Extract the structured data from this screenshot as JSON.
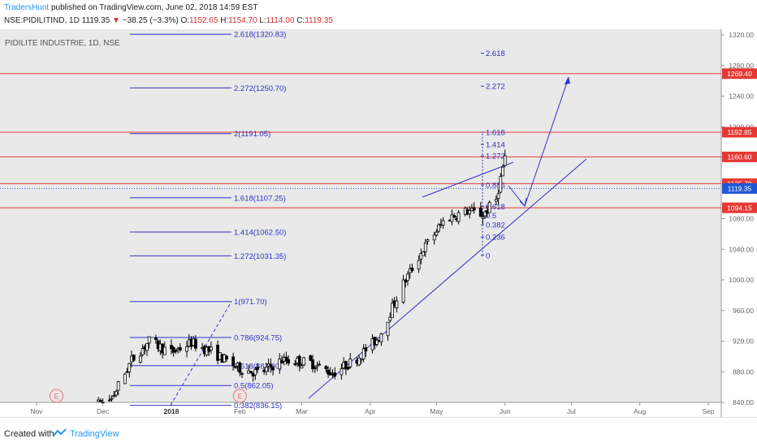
{
  "header": {
    "author": "TradersHunt",
    "published": " published on TradingView.com, June 02, 2018 14:59 EST",
    "symbol": "NSE:PIDILITIND, 1D",
    "price": "1119.35",
    "change_arrow": "▼",
    "change": "−38.25 (−3.3%)",
    "o_label": "O:",
    "o_val": "1152.65",
    "h_label": "H:",
    "h_val": "1154.70",
    "l_label": "L:",
    "l_val": "1114.00",
    "c_label": "C:",
    "c_val": "1119.35"
  },
  "footer": {
    "created_with": "Created with",
    "brand": "TradingView"
  },
  "colors": {
    "background": "#e9e9e9",
    "candle": "#000000",
    "fib": "#3030c8",
    "resistance": "#e53935",
    "price_line": "#1e56d6",
    "axis_text": "#666666"
  },
  "chart_data": {
    "type": "candlestick",
    "title": "PIDILITE INDUSTRIE, 1D, NSE",
    "y_axis": {
      "min": 820,
      "max": 1330,
      "ticks": [
        840,
        880,
        920,
        960,
        1000,
        1040,
        1080,
        1120,
        1160,
        1200,
        1240,
        1280,
        1320
      ],
      "tick_labels": [
        "840.00",
        "880.00",
        "920.00",
        "960.00",
        "1000.00",
        "1040.00",
        "1080.00",
        "1120.00",
        "1160.00",
        "1200.00",
        "1240.00",
        "1280.00",
        "1320.00"
      ]
    },
    "x_axis": {
      "labels": [
        "Nov",
        "Dec",
        "2018",
        "Feb",
        "Mar",
        "Apr",
        "May",
        "Jun",
        "Jul",
        "Aug",
        "Sep"
      ],
      "dates": [
        "2017-11-01",
        "2017-12-01",
        "2018-01-01",
        "2018-02-01",
        "2018-03-01",
        "2018-04-01",
        "2018-05-01",
        "2018-06-01",
        "2018-07-01",
        "2018-08-01",
        "2018-09-01"
      ]
    },
    "horizontal_levels": [
      {
        "value": 1269.4,
        "label": "1269.40",
        "color": "#e53935"
      },
      {
        "value": 1192.85,
        "label": "1192.85",
        "color": "#e53935"
      },
      {
        "value": 1160.6,
        "label": "1160.60",
        "color": "#e53935"
      },
      {
        "value": 1125.7,
        "label": "1125.70",
        "color": "#e53935"
      },
      {
        "value": 1094.15,
        "label": "1094.15",
        "color": "#e53935"
      }
    ],
    "current_price": {
      "value": 1119.35,
      "label": "1119.35"
    },
    "fib_extension_left": [
      {
        "label": "2.618(1320.83)",
        "value": 1320.83
      },
      {
        "label": "2.272(1250.70)",
        "value": 1250.7
      },
      {
        "label": "2(1191.05)",
        "value": 1191.05
      },
      {
        "label": "1.618(1107.25)",
        "value": 1107.25
      },
      {
        "label": "1.414(1062.50)",
        "value": 1062.5
      },
      {
        "label": "1.272(1031.35)",
        "value": 1031.35
      },
      {
        "label": "1(971.70)",
        "value": 971.7
      },
      {
        "label": "0.786(924.75)",
        "value": 924.75
      },
      {
        "label": "0.618(887.90)",
        "value": 887.9
      },
      {
        "label": "0.5(862.05)",
        "value": 862.05
      },
      {
        "label": "0.382(836.15)",
        "value": 836.15
      }
    ],
    "fib_retracement_right": [
      {
        "label": "2.618",
        "value": 1296
      },
      {
        "label": "2.272",
        "value": 1253
      },
      {
        "label": "1.618",
        "value": 1193
      },
      {
        "label": "1.414",
        "value": 1177
      },
      {
        "label": "1.272",
        "value": 1162
      },
      {
        "label": "0.886",
        "value": 1124
      },
      {
        "label": "0.618",
        "value": 1096
      },
      {
        "label": "0.5",
        "value": 1084
      },
      {
        "label": "0.382",
        "value": 1072
      },
      {
        "label": "0.236",
        "value": 1056
      },
      {
        "label": "0",
        "value": 1032
      }
    ],
    "earnings_markers": [
      {
        "label": "E",
        "date": "2017-11-10"
      },
      {
        "label": "E",
        "date": "2018-02-01"
      }
    ]
  }
}
